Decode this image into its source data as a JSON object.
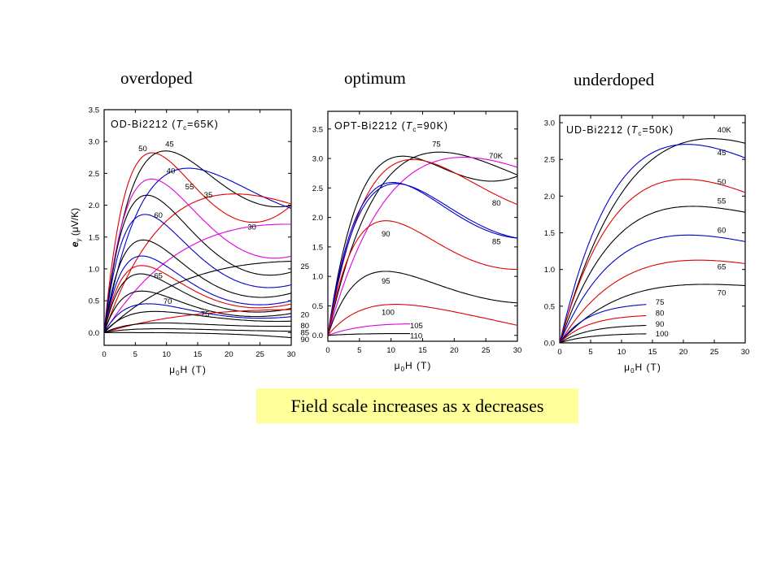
{
  "headings": {
    "overdoped": "overdoped",
    "optimum": "optimum",
    "underdoped": "underdoped"
  },
  "caption": "Field scale increases as x decreases",
  "colors": {
    "black": "#000000",
    "red": "#e00000",
    "blue": "#0000cc",
    "magenta": "#e000e0"
  },
  "chart_data": [
    {
      "type": "line",
      "panel": "overdoped",
      "title_parts": [
        "OD-Bi2212 (",
        "T",
        "c",
        "=65K)"
      ],
      "ylabel_parts": [
        "e",
        "y",
        " (μV/K)"
      ],
      "xlabel_parts": [
        "μ",
        "0",
        "H  (T)"
      ],
      "xlim": [
        0,
        30
      ],
      "ylim": [
        -0.2,
        3.5
      ],
      "xticks": [
        "0",
        "5",
        "10",
        "15",
        "20",
        "25",
        "30"
      ],
      "xtick_values": [
        0,
        5,
        10,
        15,
        20,
        25,
        30
      ],
      "yticks": [
        "0.0",
        "0.5",
        "1.0",
        "1.5",
        "2.0",
        "2.5",
        "3.0",
        "3.5"
      ],
      "ytick_values": [
        0,
        0.5,
        1,
        1.5,
        2,
        2.5,
        3,
        3.5
      ],
      "series": [
        {
          "name": "50",
          "color": "red",
          "peak": 2.8,
          "hp": 7.5,
          "end": 2.0,
          "lx": 5.5,
          "ly": 2.85
        },
        {
          "name": "45",
          "color": "black",
          "peak": 2.82,
          "hp": 9.5,
          "end": 2.0,
          "lx": 9.8,
          "ly": 2.92
        },
        {
          "name": "40",
          "color": "blue",
          "peak": 2.55,
          "hp": 13,
          "end": 1.95,
          "lx": 10,
          "ly": 2.5
        },
        {
          "name": "55",
          "color": "magenta",
          "peak": 2.4,
          "hp": 7.5,
          "end": 1.2,
          "lx": 13,
          "ly": 2.25
        },
        {
          "name": "35",
          "color": "red",
          "peak": 2.18,
          "hp": 21,
          "end": 2.02,
          "lx": 16,
          "ly": 2.12
        },
        {
          "name": "",
          "color": "black",
          "peak": 2.15,
          "hp": 6.8,
          "end": 0.95
        },
        {
          "name": "60",
          "color": "blue",
          "peak": 1.85,
          "hp": 6.5,
          "end": 0.75,
          "lx": 8,
          "ly": 1.8
        },
        {
          "name": "30",
          "color": "magenta",
          "peak": 1.72,
          "hp": 30,
          "end": 1.7,
          "lx": 23,
          "ly": 1.62
        },
        {
          "name": "",
          "color": "black",
          "peak": 1.45,
          "hp": 6.2,
          "end": 0.62
        },
        {
          "name": "",
          "color": "blue",
          "peak": 1.2,
          "hp": 6,
          "end": 0.5
        },
        {
          "name": "",
          "color": "red",
          "peak": 1.05,
          "hp": 6,
          "end": 0.45
        },
        {
          "name": "65",
          "color": "black",
          "peak": 0.92,
          "hp": 5.8,
          "end": 0.38,
          "lx": 8,
          "ly": 0.85
        },
        {
          "name": "25",
          "color": "black",
          "peak": 1.12,
          "hp": 32,
          "end": 1.12,
          "lx": 31.5,
          "ly": 1.0
        },
        {
          "name": "",
          "color": "black",
          "peak": 0.65,
          "hp": 6,
          "end": 0.3
        },
        {
          "name": "70",
          "color": "blue",
          "peak": 0.45,
          "hp": 7,
          "end": 0.25,
          "lx": 9.5,
          "ly": 0.45
        },
        {
          "name": "20",
          "color": "red",
          "peak": 0.36,
          "hp": 32,
          "end": 0.36,
          "lx": 31.5,
          "ly": 0.24
        },
        {
          "name": "75",
          "color": "black",
          "peak": 0.33,
          "hp": 8,
          "end": 0.18,
          "lx": 15.5,
          "ly": 0.25
        },
        {
          "name": "80",
          "color": "black",
          "peak": 0.15,
          "hp": 9,
          "end": 0.1,
          "lx": 31.5,
          "ly": 0.07
        },
        {
          "name": "85",
          "color": "black",
          "peak": 0.06,
          "hp": 9,
          "end": 0.02,
          "lx": 31.5,
          "ly": -0.04
        },
        {
          "name": "90",
          "color": "black",
          "peak": 0.0,
          "hp": 9,
          "end": -0.08,
          "lx": 31.5,
          "ly": -0.15
        }
      ]
    },
    {
      "type": "line",
      "panel": "optimum",
      "title_parts": [
        "OPT-Bi2212 (",
        "T",
        "c",
        "=90K)"
      ],
      "xlabel_parts": [
        "μ",
        "0",
        "H  (T)"
      ],
      "xlim": [
        0,
        30
      ],
      "ylim": [
        -0.1,
        3.8
      ],
      "xticks": [
        "0",
        "5",
        "10",
        "15",
        "20",
        "25",
        "30"
      ],
      "xtick_values": [
        0,
        5,
        10,
        15,
        20,
        25,
        30
      ],
      "yticks": [
        "0.0",
        "0.5",
        "1.0",
        "1.5",
        "2.0",
        "2.5",
        "3.0",
        "3.5"
      ],
      "ytick_values": [
        0,
        0.5,
        1,
        1.5,
        2,
        2.5,
        3,
        3.5
      ],
      "series": [
        {
          "name": "75",
          "color": "black",
          "peak": 3.07,
          "hp": 17,
          "end": 2.72,
          "lx": 16.5,
          "ly": 3.2
        },
        {
          "name": "70K",
          "color": "magenta",
          "peak": 3.0,
          "hp": 21,
          "end": 2.85,
          "lx": 25.5,
          "ly": 3.0
        },
        {
          "name": "",
          "color": "black",
          "peak": 2.97,
          "hp": 11,
          "end": 2.7
        },
        {
          "name": "80",
          "color": "red",
          "peak": 2.95,
          "hp": 13,
          "end": 2.22,
          "lx": 26,
          "ly": 2.2
        },
        {
          "name": "",
          "color": "blue",
          "peak": 2.57,
          "hp": 10,
          "end": 1.65
        },
        {
          "name": "85",
          "color": "blue",
          "peak": 2.55,
          "hp": 10.5,
          "end": 1.65,
          "lx": 26,
          "ly": 1.55
        },
        {
          "name": "90",
          "color": "red",
          "peak": 1.93,
          "hp": 9,
          "end": 1.12,
          "lx": 8.5,
          "ly": 1.68
        },
        {
          "name": "95",
          "color": "black",
          "peak": 1.08,
          "hp": 9,
          "end": 0.55,
          "lx": 8.5,
          "ly": 0.88
        },
        {
          "name": "100",
          "color": "red",
          "peak": 0.53,
          "hp": 11,
          "end": 0.17,
          "lx": 8.5,
          "ly": 0.35
        },
        {
          "name": "105",
          "color": "magenta",
          "peak": 0.19,
          "hp": 13,
          "end": 0.17,
          "lx": 13,
          "ly": 0.12,
          "xmax": 13
        },
        {
          "name": "110",
          "color": "black",
          "peak": 0.03,
          "hp": 12,
          "end": 0.02,
          "lx": 13,
          "ly": -0.05,
          "xmax": 13
        }
      ]
    },
    {
      "type": "line",
      "panel": "underdoped",
      "title_parts": [
        "UD-Bi2212 (",
        "T",
        "c",
        "=50K)"
      ],
      "xlabel_parts": [
        "μ",
        "0",
        "H  (T)"
      ],
      "xlim": [
        0,
        30
      ],
      "ylim": [
        0,
        3.1
      ],
      "xticks": [
        "0",
        "5",
        "10",
        "15",
        "20",
        "25",
        "30"
      ],
      "xtick_values": [
        0,
        5,
        10,
        15,
        20,
        25,
        30
      ],
      "yticks": [
        "0.0",
        "0.5",
        "1.0",
        "1.5",
        "2.0",
        "2.5",
        "3.0"
      ],
      "ytick_values": [
        0,
        0.5,
        1,
        1.5,
        2,
        2.5,
        3
      ],
      "series": [
        {
          "name": "40K",
          "color": "black",
          "peak": 2.8,
          "hp": 25,
          "end": 2.72,
          "lx": 25.5,
          "ly": 2.87
        },
        {
          "name": "45",
          "color": "blue",
          "peak": 2.68,
          "hp": 20,
          "end": 2.52,
          "lx": 25.5,
          "ly": 2.56
        },
        {
          "name": "50",
          "color": "red",
          "peak": 2.22,
          "hp": 20,
          "end": 2.05,
          "lx": 25.5,
          "ly": 2.16
        },
        {
          "name": "55",
          "color": "black",
          "peak": 1.82,
          "hp": 20,
          "end": 1.78,
          "lx": 25.5,
          "ly": 1.9
        },
        {
          "name": "60",
          "color": "blue",
          "peak": 1.45,
          "hp": 20,
          "end": 1.38,
          "lx": 25.5,
          "ly": 1.5
        },
        {
          "name": "65",
          "color": "red",
          "peak": 1.12,
          "hp": 22,
          "end": 1.08,
          "lx": 25.5,
          "ly": 1.0
        },
        {
          "name": "70",
          "color": "black",
          "peak": 0.78,
          "hp": 22,
          "end": 0.78,
          "lx": 25.5,
          "ly": 0.65
        },
        {
          "name": "75",
          "color": "blue",
          "peak": 0.55,
          "hp": 14,
          "end": 0.55,
          "lx": 15.5,
          "ly": 0.52,
          "xmax": 14,
          "mono": true
        },
        {
          "name": "80",
          "color": "red",
          "peak": 0.39,
          "hp": 14,
          "end": 0.39,
          "lx": 15.5,
          "ly": 0.37,
          "xmax": 14,
          "mono": true
        },
        {
          "name": "90",
          "color": "black",
          "peak": 0.25,
          "hp": 14,
          "end": 0.25,
          "lx": 15.5,
          "ly": 0.22,
          "xmax": 14,
          "mono": true
        },
        {
          "name": "100",
          "color": "black",
          "peak": 0.13,
          "hp": 14,
          "end": 0.13,
          "lx": 15.5,
          "ly": 0.09,
          "xmax": 14,
          "mono": true
        }
      ]
    }
  ]
}
